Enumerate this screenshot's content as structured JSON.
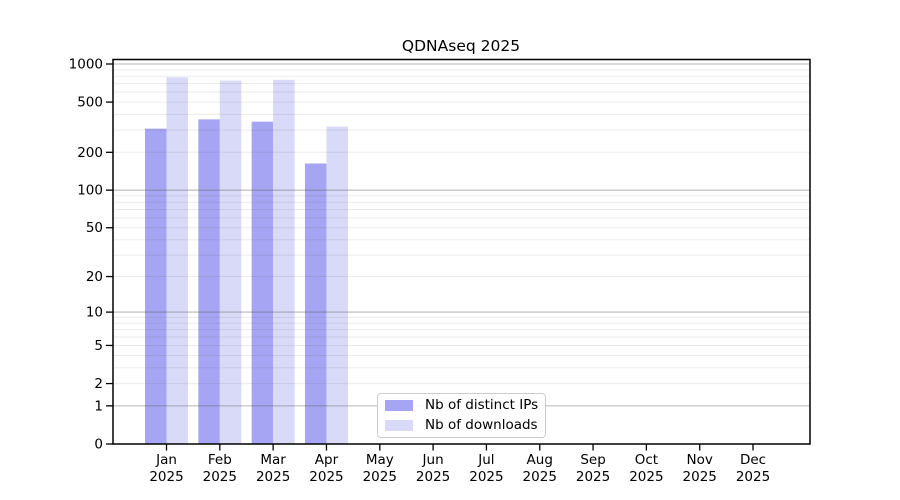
{
  "chart_data": {
    "type": "bar",
    "title": "QDNAseq 2025",
    "categories": [
      "Jan",
      "Feb",
      "Mar",
      "Apr",
      "May",
      "Jun",
      "Jul",
      "Aug",
      "Sep",
      "Oct",
      "Nov",
      "Dec"
    ],
    "category_year": "2025",
    "series": [
      {
        "name": "Nb of distinct IPs",
        "color": "#a5a5f3",
        "values": [
          308,
          365,
          350,
          163,
          null,
          null,
          null,
          null,
          null,
          null,
          null,
          null
        ]
      },
      {
        "name": "Nb of downloads",
        "color": "#d9d9f8",
        "values": [
          785,
          740,
          750,
          320,
          null,
          null,
          null,
          null,
          null,
          null,
          null,
          null
        ]
      }
    ],
    "yscale": "log1p",
    "ylim": [
      0,
      1000
    ],
    "yticks": [
      1000,
      500,
      200,
      100,
      50,
      20,
      10,
      5,
      2,
      1,
      0
    ],
    "y_major_gridlines": [
      1,
      10,
      100,
      1000
    ],
    "grid": "major+minor",
    "legend_position": "lower center-left",
    "xlabel": "",
    "ylabel": ""
  },
  "style_colors": {
    "axis": "#000000",
    "grid_major": "#b3b3b3",
    "grid_minor": "#e9e9e9",
    "legend_border": "#cccccc"
  }
}
